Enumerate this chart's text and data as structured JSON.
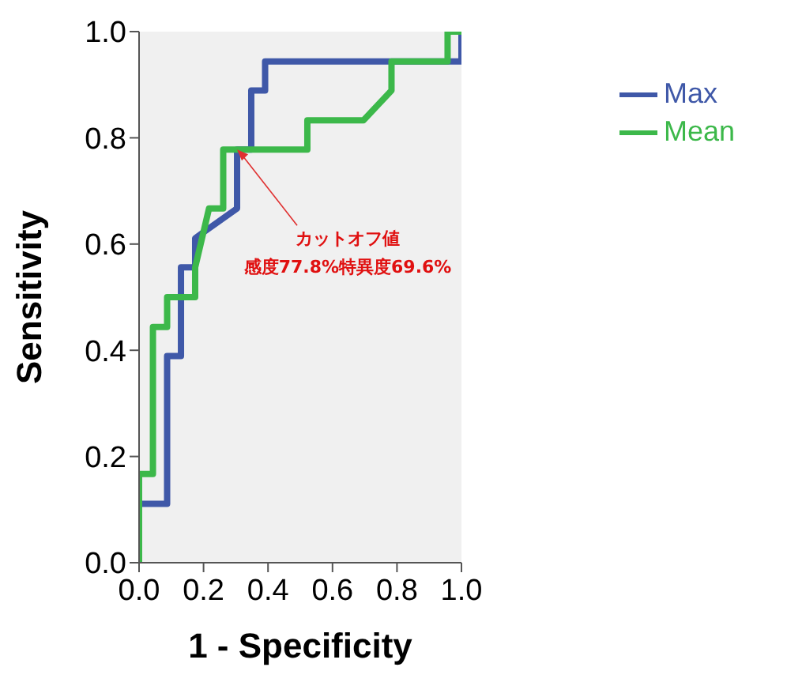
{
  "chart_data": {
    "type": "line",
    "xlabel": "1 - Specificity",
    "ylabel": "Sensitivity",
    "xlim": [
      0,
      1
    ],
    "ylim": [
      0,
      1
    ],
    "xticks": [
      {
        "value": 0,
        "label": "0.0"
      },
      {
        "value": 0.2,
        "label": "0.2"
      },
      {
        "value": 0.4,
        "label": "0.4"
      },
      {
        "value": 0.6,
        "label": "0.6"
      },
      {
        "value": 0.8,
        "label": "0.8"
      },
      {
        "value": 1,
        "label": "1.0"
      }
    ],
    "yticks": [
      {
        "value": 0,
        "label": "0.0"
      },
      {
        "value": 0.2,
        "label": "0.2"
      },
      {
        "value": 0.4,
        "label": "0.4"
      },
      {
        "value": 0.6,
        "label": "0.6"
      },
      {
        "value": 0.8,
        "label": "0.8"
      },
      {
        "value": 1,
        "label": "1.0"
      }
    ],
    "series": [
      {
        "name": "Max",
        "color": "#3f58a8",
        "x": [
          0,
          0,
          0.087,
          0.087,
          0.13,
          0.13,
          0.174,
          0.174,
          0.304,
          0.304,
          0.348,
          0.348,
          0.391,
          0.391,
          1,
          1
        ],
        "values": [
          0,
          0.111,
          0.111,
          0.389,
          0.389,
          0.556,
          0.556,
          0.611,
          0.667,
          0.778,
          0.778,
          0.889,
          0.889,
          0.944,
          0.944,
          1
        ]
      },
      {
        "name": "Mean",
        "color": "#3cb84a",
        "x": [
          0,
          0,
          0.043,
          0.043,
          0.087,
          0.087,
          0.174,
          0.174,
          0.217,
          0.261,
          0.261,
          0.522,
          0.522,
          0.696,
          0.783,
          0.783,
          0.957,
          0.957,
          1
        ],
        "values": [
          0,
          0.167,
          0.167,
          0.444,
          0.444,
          0.5,
          0.5,
          0.556,
          0.667,
          0.667,
          0.778,
          0.778,
          0.833,
          0.833,
          0.889,
          0.944,
          0.944,
          1,
          1
        ]
      }
    ],
    "annotations": [
      {
        "text": "カットオフ値",
        "x": 0.304,
        "y": 0.778
      },
      "感度77.8%特異度69.6%"
    ],
    "legend": "right",
    "grid": false,
    "marker": "none",
    "line_style": "solid"
  }
}
